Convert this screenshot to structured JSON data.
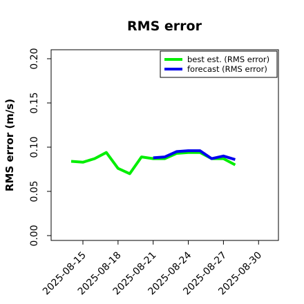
{
  "chart_data": {
    "type": "line",
    "title": "RMS error",
    "xlabel": "",
    "ylabel": "RMS error (m/s)",
    "ylim": [
      0.0,
      0.2
    ],
    "yticks": [
      "0.00",
      "0.05",
      "0.10",
      "0.15",
      "0.20"
    ],
    "ytick_values": [
      0.0,
      0.05,
      0.1,
      0.15,
      0.2
    ],
    "xticks": [
      "2025-08-15",
      "2025-08-18",
      "2025-08-21",
      "2025-08-24",
      "2025-08-27",
      "2025-08-30"
    ],
    "highlighted_xtick": "2025-08-21",
    "highlight_color": "#228b22",
    "legend_position": "top-right",
    "series": [
      {
        "name": "best est. (RMS error)",
        "color": "#00ee00",
        "points": [
          {
            "x": "2025-08-14",
            "y": 0.084
          },
          {
            "x": "2025-08-15",
            "y": 0.083
          },
          {
            "x": "2025-08-16",
            "y": 0.087
          },
          {
            "x": "2025-08-17",
            "y": 0.094
          },
          {
            "x": "2025-08-18",
            "y": 0.076
          },
          {
            "x": "2025-08-19",
            "y": 0.07
          },
          {
            "x": "2025-08-20",
            "y": 0.089
          },
          {
            "x": "2025-08-21",
            "y": 0.087
          },
          {
            "x": "2025-08-22",
            "y": 0.087
          },
          {
            "x": "2025-08-23",
            "y": 0.093
          },
          {
            "x": "2025-08-24",
            "y": 0.094
          },
          {
            "x": "2025-08-25",
            "y": 0.094
          },
          {
            "x": "2025-08-26",
            "y": 0.087
          },
          {
            "x": "2025-08-27",
            "y": 0.087
          },
          {
            "x": "2025-08-28",
            "y": 0.08
          }
        ]
      },
      {
        "name": "forecast (RMS error)",
        "color": "#0000ee",
        "points": [
          {
            "x": "2025-08-21",
            "y": 0.088
          },
          {
            "x": "2025-08-22",
            "y": 0.089
          },
          {
            "x": "2025-08-23",
            "y": 0.095
          },
          {
            "x": "2025-08-24",
            "y": 0.096
          },
          {
            "x": "2025-08-25",
            "y": 0.096
          },
          {
            "x": "2025-08-26",
            "y": 0.087
          },
          {
            "x": "2025-08-27",
            "y": 0.09
          },
          {
            "x": "2025-08-28",
            "y": 0.086
          }
        ]
      }
    ]
  }
}
